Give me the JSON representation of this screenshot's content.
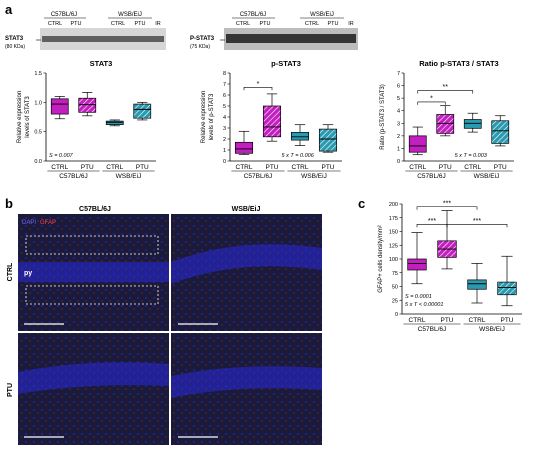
{
  "colors": {
    "c57_ctrl": "#c21fbf",
    "c57_ptu": "#c21fbf",
    "wsb_ctrl": "#2a9ab0",
    "wsb_ptu": "#2a9ab0",
    "dapi": "#2a2ae0",
    "gfap": "#d43030"
  },
  "panel_a": {
    "letter": "a",
    "blot_stat3": {
      "label": "STAT3",
      "kda": "(80 KDa)",
      "strain1": "C57BL/6J",
      "strain2": "WSB/EiJ",
      "lanes": [
        "CTRL",
        "PTU",
        "CTRL",
        "PTU",
        "IR"
      ]
    },
    "blot_pstat3": {
      "label": "P-STAT3",
      "kda": "(75 KDa)",
      "strain1": "C57BL/6J",
      "strain2": "WSB/EiJ",
      "lanes": [
        "CTRL",
        "PTU",
        "CTRL",
        "PTU",
        "IR"
      ]
    }
  },
  "panel_b": {
    "letter": "b",
    "col1": "C57BL/6J",
    "col2": "WSB/EiJ",
    "row1": "CTRL",
    "row2": "PTU",
    "dapi_label": "DAPI",
    "gfap_label": "GFAP",
    "py_label": "py"
  },
  "panel_c": {
    "letter": "c"
  },
  "chart_data": [
    {
      "type": "box",
      "title": "STAT3",
      "ylabel": "Relative expression levels of STAT3",
      "ylim": [
        0,
        1.5
      ],
      "yticks": [
        "0.0",
        "0.5",
        "1.0",
        "1.5"
      ],
      "categories": [
        "CTRL",
        "PTU",
        "CTRL",
        "PTU"
      ],
      "groups": [
        "C57BL/6J",
        "WSB/EiJ"
      ],
      "boxes": [
        {
          "min": 0.72,
          "q1": 0.8,
          "median": 0.97,
          "q3": 1.06,
          "max": 1.1
        },
        {
          "min": 0.77,
          "q1": 0.83,
          "median": 0.96,
          "q3": 1.07,
          "max": 1.17
        },
        {
          "min": 0.6,
          "q1": 0.62,
          "median": 0.66,
          "q3": 0.68,
          "max": 0.7
        },
        {
          "min": 0.7,
          "q1": 0.73,
          "median": 0.88,
          "q3": 0.97,
          "max": 1.0
        }
      ],
      "annotation": "S = 0.007",
      "brackets": []
    },
    {
      "type": "box",
      "title": "p-STAT3",
      "ylabel": "Relative expression levels of p-STAT3",
      "ylim": [
        0,
        8
      ],
      "yticks": [
        "0",
        "1",
        "2",
        "3",
        "4",
        "5",
        "6",
        "7",
        "8"
      ],
      "categories": [
        "CTRL",
        "PTU",
        "CTRL",
        "PTU"
      ],
      "groups": [
        "C57BL/6J",
        "WSB/EiJ"
      ],
      "boxes": [
        {
          "min": 0.6,
          "q1": 0.7,
          "median": 1.1,
          "q3": 1.7,
          "max": 2.7
        },
        {
          "min": 1.8,
          "q1": 2.2,
          "median": 3.1,
          "q3": 5.0,
          "max": 6.1
        },
        {
          "min": 1.4,
          "q1": 1.9,
          "median": 2.2,
          "q3": 2.6,
          "max": 3.3
        },
        {
          "min": 0.8,
          "q1": 0.9,
          "median": 2.0,
          "q3": 2.9,
          "max": 3.3
        }
      ],
      "annotation": "5 x T = 0.006",
      "brackets": [
        {
          "from": 0,
          "to": 1,
          "y": 6.7,
          "label": "*"
        }
      ]
    },
    {
      "type": "box",
      "title": "Ratio p-STAT3 / STAT3",
      "ylabel": "Ratio (p-STAT3 / STAT3)",
      "ylim": [
        0,
        7
      ],
      "yticks": [
        "0",
        "1",
        "2",
        "3",
        "4",
        "5",
        "6",
        "7"
      ],
      "categories": [
        "CTRL",
        "PTU",
        "CTRL",
        "PTU"
      ],
      "groups": [
        "C57BL/6J",
        "WSB/EiJ"
      ],
      "boxes": [
        {
          "min": 0.5,
          "q1": 0.7,
          "median": 1.2,
          "q3": 2.0,
          "max": 2.7
        },
        {
          "min": 2.0,
          "q1": 2.2,
          "median": 3.0,
          "q3": 3.7,
          "max": 4.4
        },
        {
          "min": 2.3,
          "q1": 2.6,
          "median": 3.0,
          "q3": 3.3,
          "max": 3.8
        },
        {
          "min": 1.2,
          "q1": 1.4,
          "median": 2.4,
          "q3": 3.2,
          "max": 3.6
        }
      ],
      "annotation": "5 x T = 0.003",
      "brackets": [
        {
          "from": 0,
          "to": 1,
          "y": 4.7,
          "label": "*"
        },
        {
          "from": 0,
          "to": 2,
          "y": 5.6,
          "label": "**"
        }
      ]
    },
    {
      "type": "box",
      "title": "",
      "ylabel": "GFAP+ cells density/mm²",
      "ylim": [
        0,
        200
      ],
      "yticks": [
        "0",
        "25",
        "50",
        "75",
        "100",
        "125",
        "150",
        "175",
        "200"
      ],
      "categories": [
        "CTRL",
        "PTU",
        "CTRL",
        "PTU"
      ],
      "groups": [
        "C57BL/6J",
        "WSB/EiJ"
      ],
      "boxes": [
        {
          "min": 55,
          "q1": 80,
          "median": 92,
          "q3": 100,
          "max": 148
        },
        {
          "min": 82,
          "q1": 103,
          "median": 118,
          "q3": 133,
          "max": 188
        },
        {
          "min": 20,
          "q1": 45,
          "median": 55,
          "q3": 62,
          "max": 92
        },
        {
          "min": 15,
          "q1": 35,
          "median": 48,
          "q3": 58,
          "max": 105
        }
      ],
      "annotation": [
        "S = 0.0001",
        "5 x T < 0.00001"
      ],
      "brackets": [
        {
          "from": 0,
          "to": 1,
          "y": 163,
          "label": "***"
        },
        {
          "from": 1,
          "to": 3,
          "y": 163,
          "label": "***"
        },
        {
          "from": 0,
          "to": 2,
          "y": 195,
          "label": "***"
        }
      ]
    }
  ]
}
